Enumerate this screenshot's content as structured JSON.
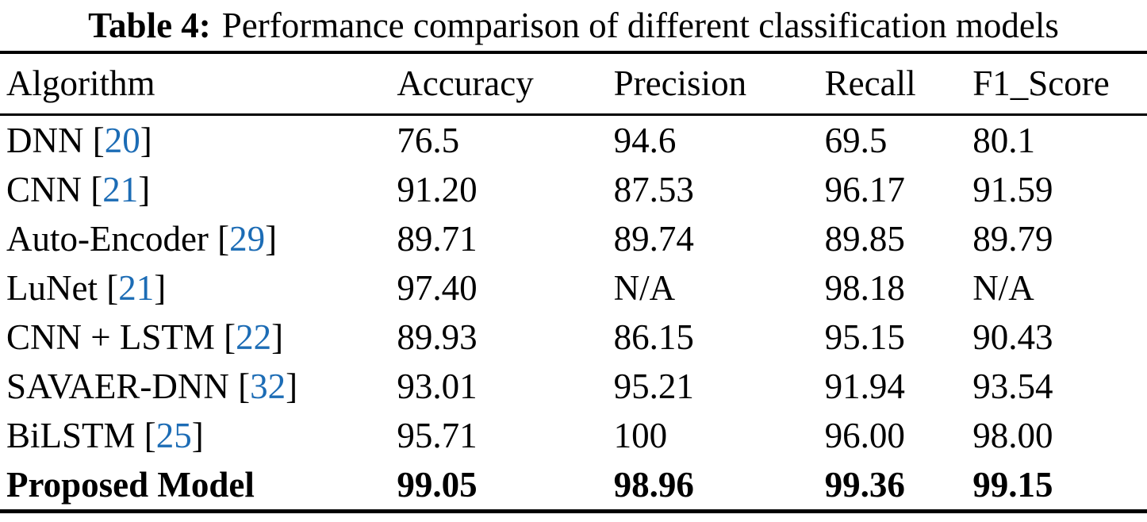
{
  "title": {
    "label": "Table 4:",
    "text": "Performance comparison of different classification models"
  },
  "colors": {
    "text": "#000000",
    "background": "#ffffff",
    "citation_link": "#1c6cb5",
    "rule": "#000000"
  },
  "chart_data": {
    "type": "table",
    "title": "Table 4: Performance comparison of different classification models",
    "columns": [
      "Algorithm",
      "Accuracy",
      "Precision",
      "Recall",
      "F1_Score"
    ],
    "rows": [
      {
        "algorithm": "DNN",
        "cite": "20",
        "accuracy": "76.5",
        "precision": "94.6",
        "recall": "69.5",
        "f1": "80.1",
        "bold": false
      },
      {
        "algorithm": "CNN",
        "cite": "21",
        "accuracy": "91.20",
        "precision": "87.53",
        "recall": "96.17",
        "f1": "91.59",
        "bold": false
      },
      {
        "algorithm": "Auto-Encoder",
        "cite": "29",
        "accuracy": "89.71",
        "precision": "89.74",
        "recall": "89.85",
        "f1": "89.79",
        "bold": false
      },
      {
        "algorithm": "LuNet",
        "cite": "21",
        "accuracy": "97.40",
        "precision": "N/A",
        "recall": "98.18",
        "f1": "N/A",
        "bold": false
      },
      {
        "algorithm": "CNN + LSTM",
        "cite": "22",
        "accuracy": "89.93",
        "precision": "86.15",
        "recall": "95.15",
        "f1": "90.43",
        "bold": false
      },
      {
        "algorithm": "SAVAER-DNN",
        "cite": "32",
        "accuracy": "93.01",
        "precision": "95.21",
        "recall": "91.94",
        "f1": "93.54",
        "bold": false
      },
      {
        "algorithm": "BiLSTM",
        "cite": "25",
        "accuracy": "95.71",
        "precision": "100",
        "recall": "96.00",
        "f1": "98.00",
        "bold": false
      },
      {
        "algorithm": "Proposed Model",
        "cite": null,
        "accuracy": "99.05",
        "precision": "98.96",
        "recall": "99.36",
        "f1": "99.15",
        "bold": true
      }
    ]
  }
}
